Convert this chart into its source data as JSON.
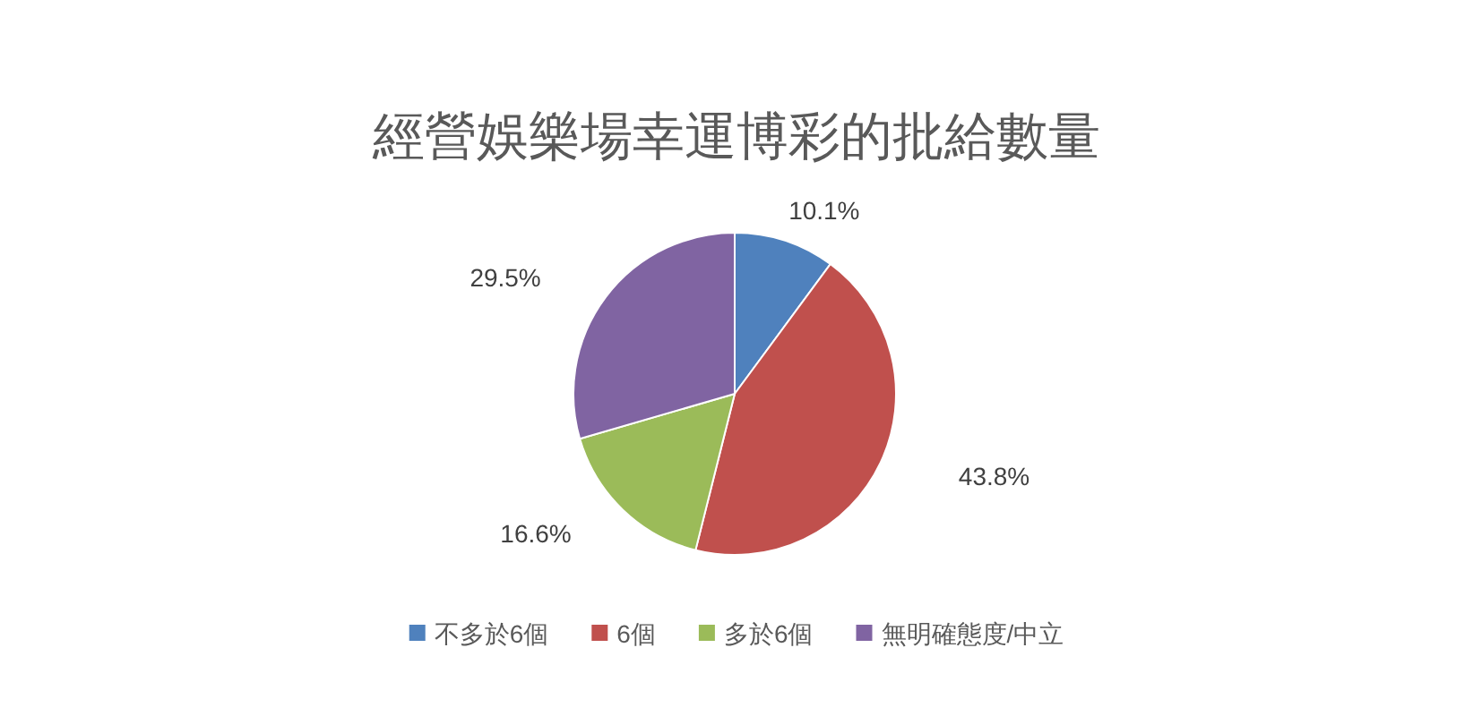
{
  "chart_data": {
    "type": "pie",
    "title": "經營娛樂場幸運博彩的批給數量",
    "categories": [
      "不多於6個",
      "6個",
      "多於6個",
      "無明確態度/中立"
    ],
    "values": [
      10.1,
      43.8,
      16.6,
      29.5
    ],
    "colors": [
      "#4f81bd",
      "#c0504d",
      "#9bbb59",
      "#8064a2"
    ],
    "value_labels": [
      "10.1%",
      "43.8%",
      "16.6%",
      "29.5%"
    ],
    "legend": "bottom"
  }
}
